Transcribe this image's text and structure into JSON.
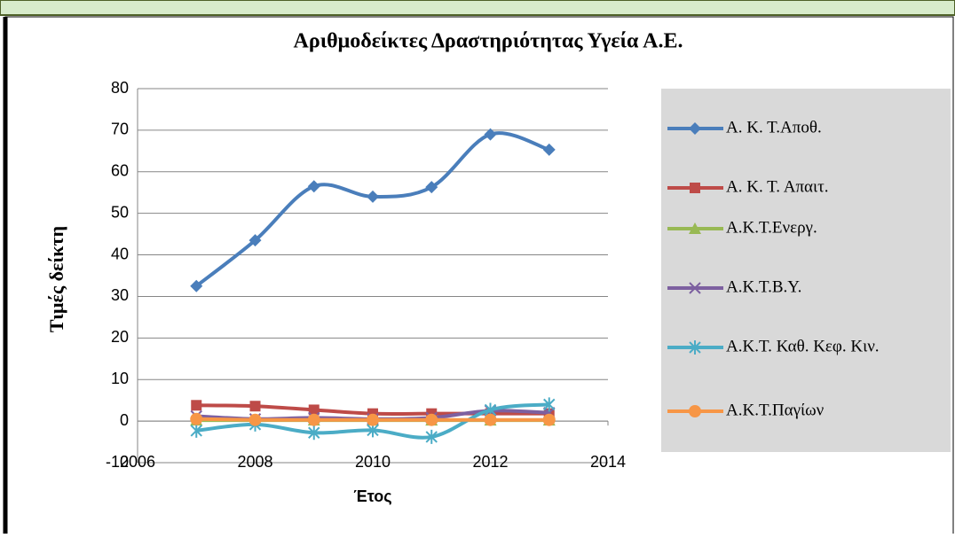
{
  "chart_data": {
    "type": "line",
    "title": "Αριθμοδείκτες Δραστηριότητας Υγεία Α.Ε.",
    "xlabel": "Έτος",
    "ylabel": "Τιμές δείκτη",
    "x": [
      2007,
      2008,
      2009,
      2010,
      2011,
      2012,
      2013
    ],
    "series": [
      {
        "name": "Α. Κ. Τ.Αποθ.",
        "color": "#4a7ebb",
        "marker": "diamond",
        "values": [
          32.5,
          43.5,
          56.5,
          54,
          56.3,
          69,
          65.3
        ]
      },
      {
        "name": "Α. Κ. Τ. Απαιτ.",
        "color": "#be4b48",
        "marker": "square",
        "values": [
          3.8,
          3.6,
          2.7,
          1.8,
          1.8,
          1.8,
          1.8
        ]
      },
      {
        "name": "Α.Κ.Τ.Ενεργ.",
        "color": "#98b954",
        "marker": "triangle",
        "values": [
          0.2,
          0.2,
          0.2,
          0.2,
          0.2,
          0.2,
          0.2
        ]
      },
      {
        "name": "Α.Κ.Τ.Β.Υ.",
        "color": "#7d60a0",
        "marker": "x",
        "values": [
          1.2,
          0.5,
          0.8,
          0.5,
          0.8,
          2.5,
          2.0
        ]
      },
      {
        "name": "Α.Κ.Τ. Καθ. Κεφ. Κιν.",
        "color": "#4bacc6",
        "marker": "star",
        "values": [
          -2.3,
          -0.8,
          -2.8,
          -2.2,
          -3.8,
          2.7,
          4.0
        ]
      },
      {
        "name": "Α.Κ.Τ.Παγίων",
        "color": "#f79646",
        "marker": "circle",
        "values": [
          0.5,
          0.3,
          0.3,
          0.3,
          0.3,
          0.3,
          0.3
        ]
      }
    ],
    "xlim": [
      2006,
      2014
    ],
    "xticks": [
      2006,
      2008,
      2010,
      2012,
      2014
    ],
    "ylim": [
      -10,
      80
    ],
    "yticks": [
      -10,
      0,
      10,
      20,
      30,
      40,
      50,
      60,
      70,
      80
    ],
    "grid": true,
    "legend": "right",
    "smooth": true
  }
}
